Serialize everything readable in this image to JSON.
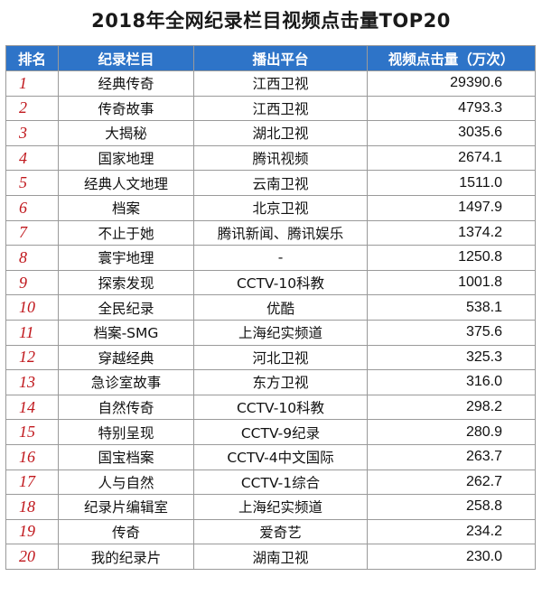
{
  "title": "2018年全网纪录栏目视频点击量TOP20",
  "headers": [
    "排名",
    "纪录栏目",
    "播出平台",
    "视频点击量（万次）"
  ],
  "rows": [
    {
      "rank": "1",
      "name": "经典传奇",
      "platform": "江西卫视",
      "value": "29390.6"
    },
    {
      "rank": "2",
      "name": "传奇故事",
      "platform": "江西卫视",
      "value": "4793.3"
    },
    {
      "rank": "3",
      "name": "大揭秘",
      "platform": "湖北卫视",
      "value": "3035.6"
    },
    {
      "rank": "4",
      "name": "国家地理",
      "platform": "腾讯视频",
      "value": "2674.1"
    },
    {
      "rank": "5",
      "name": "经典人文地理",
      "platform": "云南卫视",
      "value": "1511.0"
    },
    {
      "rank": "6",
      "name": "档案",
      "platform": "北京卫视",
      "value": "1497.9"
    },
    {
      "rank": "7",
      "name": "不止于她",
      "platform": "腾讯新闻、腾讯娱乐",
      "value": "1374.2"
    },
    {
      "rank": "8",
      "name": "寰宇地理",
      "platform": "-",
      "value": "1250.8"
    },
    {
      "rank": "9",
      "name": "探索发现",
      "platform": "CCTV-10科教",
      "value": "1001.8"
    },
    {
      "rank": "10",
      "name": "全民纪录",
      "platform": "优酷",
      "value": "538.1"
    },
    {
      "rank": "11",
      "name": "档案-SMG",
      "platform": "上海纪实频道",
      "value": "375.6"
    },
    {
      "rank": "12",
      "name": "穿越经典",
      "platform": "河北卫视",
      "value": "325.3"
    },
    {
      "rank": "13",
      "name": "急诊室故事",
      "platform": "东方卫视",
      "value": "316.0"
    },
    {
      "rank": "14",
      "name": "自然传奇",
      "platform": "CCTV-10科教",
      "value": "298.2"
    },
    {
      "rank": "15",
      "name": "特别呈现",
      "platform": "CCTV-9纪录",
      "value": "280.9"
    },
    {
      "rank": "16",
      "name": "国宝档案",
      "platform": "CCTV-4中文国际",
      "value": "263.7"
    },
    {
      "rank": "17",
      "name": "人与自然",
      "platform": "CCTV-1综合",
      "value": "262.7"
    },
    {
      "rank": "18",
      "name": "纪录片编辑室",
      "platform": "上海纪实频道",
      "value": "258.8"
    },
    {
      "rank": "19",
      "name": "传奇",
      "platform": "爱奇艺",
      "value": "234.2"
    },
    {
      "rank": "20",
      "name": "我的纪录片",
      "platform": "湖南卫视",
      "value": "230.0"
    }
  ],
  "colors": {
    "header_bg": "#2e74c8",
    "rank_color": "#c0171c"
  }
}
